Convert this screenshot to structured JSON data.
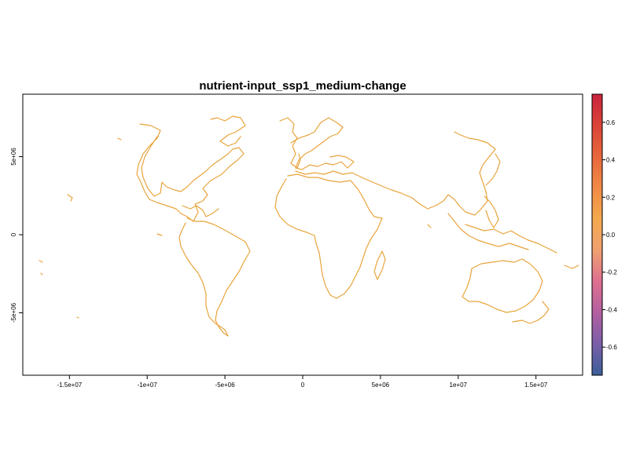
{
  "chart_data": {
    "type": "heatmap",
    "title": "nutrient-input_ssp1_medium-change",
    "x_ticks": [
      {
        "value": -15000000,
        "label": "-1.5e+07"
      },
      {
        "value": -10000000,
        "label": "-1e+07"
      },
      {
        "value": -5000000,
        "label": "-5e+06"
      },
      {
        "value": 0,
        "label": "0"
      },
      {
        "value": 5000000,
        "label": "5e+06"
      },
      {
        "value": 10000000,
        "label": "1e+07"
      },
      {
        "value": 15000000,
        "label": "1.5e+07"
      }
    ],
    "y_ticks": [
      {
        "value": 5000000,
        "label": "5e+06"
      },
      {
        "value": 0,
        "label": "0"
      },
      {
        "value": -5000000,
        "label": "-5e+06"
      }
    ],
    "xlim": [
      -18000000,
      18000000
    ],
    "ylim": [
      -9000000,
      9000000
    ],
    "colorbar": {
      "range": [
        -0.75,
        0.75
      ],
      "ticks": [
        {
          "value": 0.6,
          "label": "0.6"
        },
        {
          "value": 0.4,
          "label": "0.4"
        },
        {
          "value": 0.2,
          "label": "0.2"
        },
        {
          "value": 0.0,
          "label": "0.0"
        },
        {
          "value": -0.2,
          "label": "-0.2"
        },
        {
          "value": -0.4,
          "label": "-0.4"
        },
        {
          "value": -0.6,
          "label": "-0.6"
        }
      ],
      "colors": [
        "#3a5f9a",
        "#7a5ea8",
        "#b35fa0",
        "#de6f8f",
        "#f0a070",
        "#f5a94e",
        "#f08a45",
        "#e8683c",
        "#d94438",
        "#c9233c"
      ]
    },
    "data_value": 0.0,
    "data_color": "#e8a43c"
  }
}
